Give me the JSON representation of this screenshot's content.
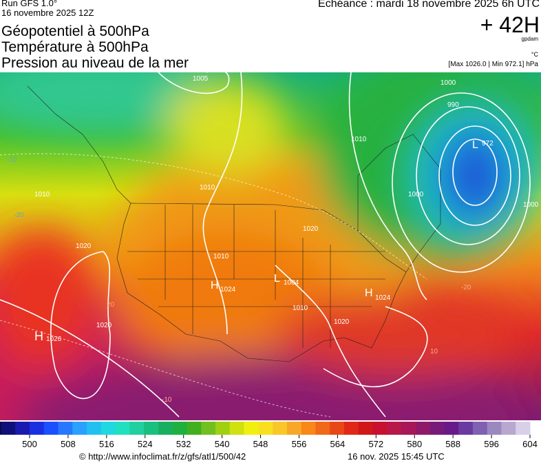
{
  "header": {
    "run": "Run GFS 1.0°",
    "run_date": "16 novembre 2025 12Z",
    "title_lines": [
      "Géopotentiel à 500hPa",
      "Température à 500hPa",
      "Pression au niveau de la mer"
    ],
    "valid": "Echéance : mardi 18 novembre 2025 6h UTC",
    "lead": "+ 42H",
    "unit_geo": "gpdam",
    "unit_temp": "°C",
    "pressure_range": "[Max 1026.0 | Min 972.1] hPa"
  },
  "map": {
    "labels": [
      "1005",
      "1000",
      "990",
      "L",
      "972",
      "1010",
      "1000",
      "1000",
      "1010",
      "1010",
      "1020",
      "1010",
      "H",
      "1024",
      "L",
      "1004",
      "1010",
      "1020",
      "H",
      "1024",
      "1020",
      "H",
      "1026",
      "1020",
      "-20",
      "-20",
      "-10",
      "10",
      "-10",
      "20"
    ]
  },
  "color_scale": {
    "ticks": [
      500,
      508,
      516,
      524,
      532,
      540,
      548,
      556,
      564,
      572,
      580,
      588,
      596,
      604
    ]
  },
  "footer": {
    "url": "© http://www.infoclimat.fr/z/gfs/atl1/500/42",
    "stamp": "16 nov. 2025 15:45 UTC"
  }
}
